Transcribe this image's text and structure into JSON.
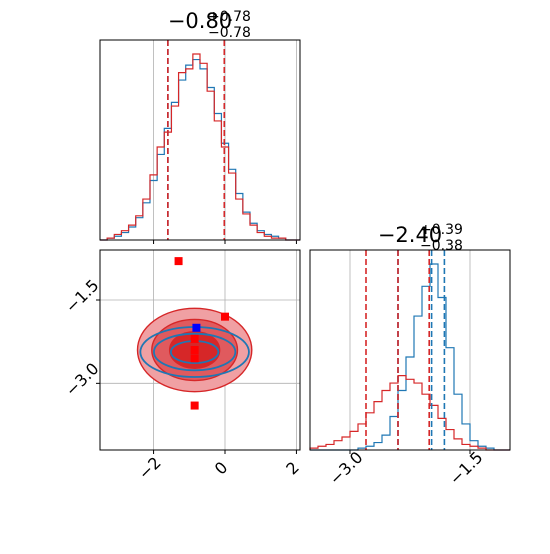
{
  "colors": {
    "series_a": "#1f77b4",
    "series_b": "#d62728",
    "marker_blue": "#0000ff",
    "marker_red": "#ff0000",
    "grid": "#b0b0b0",
    "fill_light": "#f0a0a3",
    "fill_mid": "#e05a5e",
    "fill_dark": "#d62728"
  },
  "chart_data": [
    {
      "id": "marginal-param-1",
      "type": "histogram",
      "title": {
        "main": "−0.80",
        "sup": "+0.78",
        "sub": "−0.78"
      },
      "xlim": [
        -3.5,
        2.1
      ],
      "xticks": [
        -2,
        0,
        2
      ],
      "x_ticklabels_shown": false,
      "grid": true,
      "quantile_lines": [
        -1.6,
        -0.02
      ],
      "series": [
        {
          "color": "blue",
          "bin_centers": [
            -3.4,
            -3.2,
            -3.0,
            -2.8,
            -2.6,
            -2.4,
            -2.2,
            -2.0,
            -1.8,
            -1.6,
            -1.4,
            -1.2,
            -1.0,
            -0.8,
            -0.6,
            -0.4,
            -0.2,
            0.0,
            0.2,
            0.4,
            0.6,
            0.8,
            1.0,
            1.2,
            1.4,
            1.6,
            1.8,
            2.0
          ],
          "counts": [
            0.0,
            0.01,
            0.02,
            0.04,
            0.07,
            0.12,
            0.2,
            0.32,
            0.46,
            0.6,
            0.74,
            0.86,
            0.94,
            0.97,
            0.92,
            0.82,
            0.68,
            0.52,
            0.38,
            0.25,
            0.15,
            0.09,
            0.05,
            0.03,
            0.02,
            0.01,
            0.0,
            0.0
          ]
        },
        {
          "color": "red",
          "bin_centers": [
            -3.4,
            -3.2,
            -3.0,
            -2.8,
            -2.6,
            -2.4,
            -2.2,
            -2.0,
            -1.8,
            -1.6,
            -1.4,
            -1.2,
            -1.0,
            -0.8,
            -0.6,
            -0.4,
            -0.2,
            0.0,
            0.2,
            0.4,
            0.6,
            0.8,
            1.0,
            1.2,
            1.4,
            1.6,
            1.8,
            2.0
          ],
          "counts": [
            0.0,
            0.01,
            0.03,
            0.05,
            0.08,
            0.13,
            0.22,
            0.35,
            0.5,
            0.58,
            0.72,
            0.9,
            0.92,
            1.0,
            0.95,
            0.8,
            0.64,
            0.5,
            0.36,
            0.22,
            0.14,
            0.08,
            0.04,
            0.02,
            0.01,
            0.01,
            0.0,
            0.0
          ]
        }
      ]
    },
    {
      "id": "joint-param-1-2",
      "type": "scatter",
      "xlim": [
        -3.5,
        2.1
      ],
      "ylim": [
        -4.2,
        -0.6
      ],
      "xticks": [
        -2,
        0,
        2
      ],
      "xticklabels": [
        "−2",
        "0",
        "2"
      ],
      "yticks": [
        -1.5,
        -3.0
      ],
      "yticklabels": [
        "−1.5",
        "−3.0"
      ],
      "grid": true,
      "center": [
        -0.85,
        -2.4
      ],
      "contour_radii_x": [
        0.7,
        1.2,
        1.6
      ],
      "contour_radii_y": [
        0.33,
        0.55,
        0.75
      ],
      "markers": [
        {
          "x": -0.8,
          "y": -2.0,
          "color": "blue"
        },
        {
          "x": -1.3,
          "y": -0.8,
          "color": "red"
        },
        {
          "x": 0.0,
          "y": -1.8,
          "color": "red"
        },
        {
          "x": -0.85,
          "y": -2.2,
          "color": "red"
        },
        {
          "x": -0.85,
          "y": -2.4,
          "color": "red"
        },
        {
          "x": -0.85,
          "y": -2.55,
          "color": "red"
        },
        {
          "x": -0.85,
          "y": -3.4,
          "color": "red"
        }
      ]
    },
    {
      "id": "marginal-param-2",
      "type": "histogram",
      "title": {
        "main": "−2.40",
        "sup": "+0.39",
        "sub": "−0.38"
      },
      "xlim": [
        -3.5,
        -1.0
      ],
      "xticks": [
        -3.0,
        -1.5
      ],
      "xticklabels": [
        "−3.0",
        "−1.5"
      ],
      "grid": true,
      "quantile_lines_blue": [
        -2.4,
        -1.98,
        -1.82
      ],
      "quantile_lines_red": [
        -2.8,
        -2.4,
        -2.01
      ],
      "series": [
        {
          "color": "blue",
          "bin_centers": [
            -3.45,
            -3.35,
            -3.25,
            -3.15,
            -3.05,
            -2.95,
            -2.85,
            -2.75,
            -2.65,
            -2.55,
            -2.45,
            -2.35,
            -2.25,
            -2.15,
            -2.05,
            -1.95,
            -1.85,
            -1.75,
            -1.65,
            -1.55,
            -1.45,
            -1.35,
            -1.25,
            -1.15,
            -1.05
          ],
          "counts": [
            0.0,
            0.0,
            0.0,
            0.0,
            0.0,
            0.0,
            0.01,
            0.02,
            0.04,
            0.08,
            0.18,
            0.32,
            0.5,
            0.72,
            0.88,
            1.0,
            0.82,
            0.55,
            0.3,
            0.14,
            0.05,
            0.02,
            0.01,
            0.0,
            0.0
          ]
        },
        {
          "color": "red",
          "bin_centers": [
            -3.45,
            -3.35,
            -3.25,
            -3.15,
            -3.05,
            -2.95,
            -2.85,
            -2.75,
            -2.65,
            -2.55,
            -2.45,
            -2.35,
            -2.25,
            -2.15,
            -2.05,
            -1.95,
            -1.85,
            -1.75,
            -1.65,
            -1.55,
            -1.45,
            -1.35,
            -1.25,
            -1.15,
            -1.05
          ],
          "counts": [
            0.01,
            0.02,
            0.03,
            0.05,
            0.07,
            0.1,
            0.14,
            0.2,
            0.26,
            0.32,
            0.36,
            0.4,
            0.38,
            0.36,
            0.3,
            0.24,
            0.17,
            0.11,
            0.06,
            0.03,
            0.02,
            0.01,
            0.0,
            0.0,
            0.0
          ]
        }
      ]
    }
  ]
}
